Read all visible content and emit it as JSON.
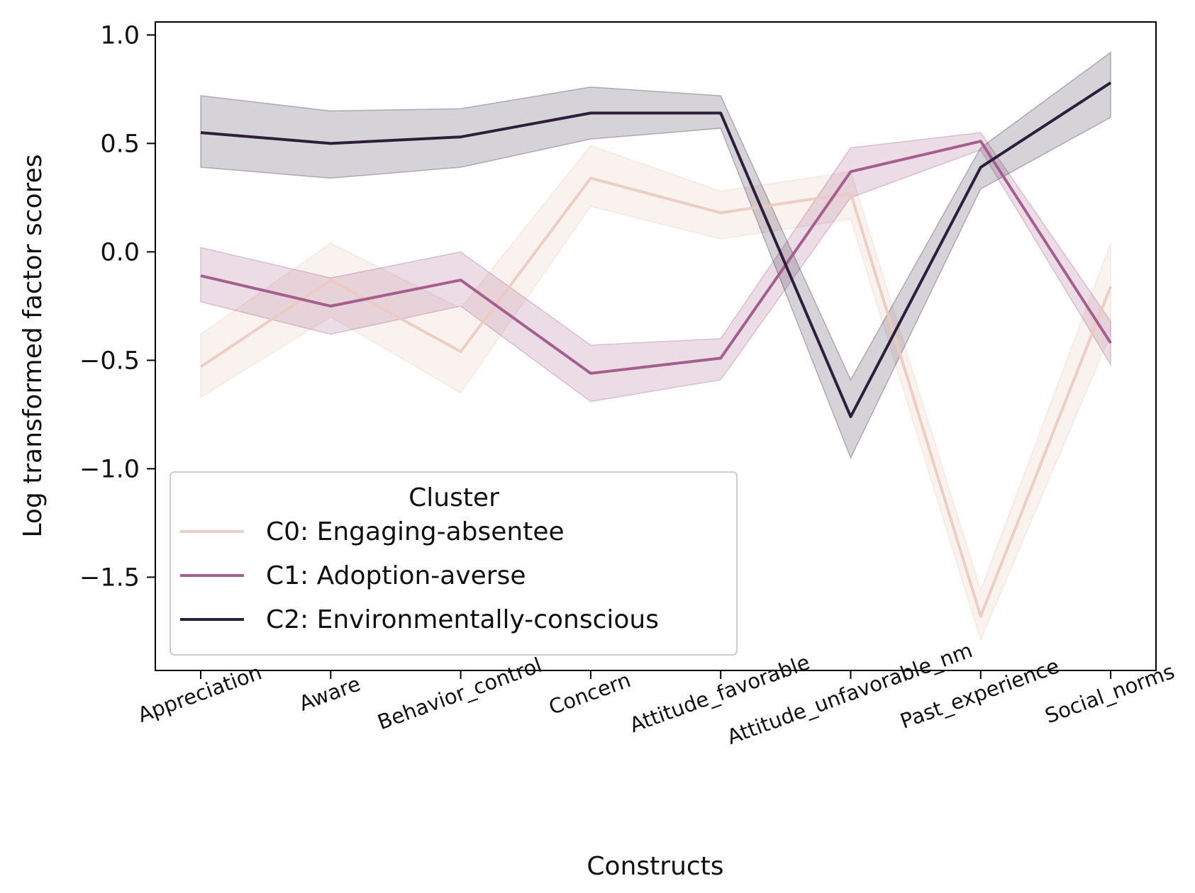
{
  "chart_data": {
    "type": "line",
    "xlabel": "Constructs",
    "ylabel": "Log transformed factor scores",
    "categories": [
      "Appreciation",
      "Aware",
      "Behavior_control",
      "Concern",
      "Attitude_favorable",
      "Attitude_unfavorable_nm",
      "Past_experience",
      "Social_norms"
    ],
    "ylim": [
      -1.93,
      1.06
    ],
    "yticks": [
      1.0,
      0.5,
      0.0,
      -0.5,
      -1.0,
      -1.5
    ],
    "ytick_labels": [
      "1.0",
      "0.5",
      "0.0",
      "−0.5",
      "−1.0",
      "−1.5"
    ],
    "grid": false,
    "legend": {
      "title": "Cluster",
      "placement": "lower-left"
    },
    "series": [
      {
        "name": "C0: Engaging-absentee",
        "color": "#ebcabf",
        "line_opacity": 0.9,
        "band_opacity": 0.25,
        "values": [
          -0.53,
          -0.13,
          -0.46,
          0.34,
          0.18,
          0.27,
          -1.68,
          -0.16
        ],
        "ci_low": [
          -0.67,
          -0.3,
          -0.65,
          0.21,
          0.06,
          0.15,
          -1.79,
          -0.38
        ],
        "ci_high": [
          -0.38,
          0.04,
          -0.26,
          0.49,
          0.28,
          0.37,
          -1.56,
          0.04
        ]
      },
      {
        "name": "C1: Adoption-averse",
        "color": "#a55f8f",
        "line_opacity": 1,
        "band_opacity": 0.22,
        "values": [
          -0.11,
          -0.25,
          -0.13,
          -0.56,
          -0.49,
          0.37,
          0.51,
          -0.42
        ],
        "ci_low": [
          -0.23,
          -0.38,
          -0.25,
          -0.69,
          -0.59,
          0.25,
          0.47,
          -0.52
        ],
        "ci_high": [
          0.02,
          -0.12,
          0.0,
          -0.43,
          -0.4,
          0.48,
          0.55,
          -0.32
        ]
      },
      {
        "name": "C2: Environmentally-conscious",
        "color": "#2b1f3b",
        "line_opacity": 1,
        "band_opacity": 0.2,
        "values": [
          0.55,
          0.5,
          0.53,
          0.64,
          0.64,
          -0.76,
          0.39,
          0.78
        ],
        "ci_low": [
          0.39,
          0.34,
          0.39,
          0.52,
          0.57,
          -0.95,
          0.29,
          0.62
        ],
        "ci_high": [
          0.72,
          0.65,
          0.66,
          0.76,
          0.72,
          -0.59,
          0.48,
          0.92
        ]
      }
    ]
  }
}
